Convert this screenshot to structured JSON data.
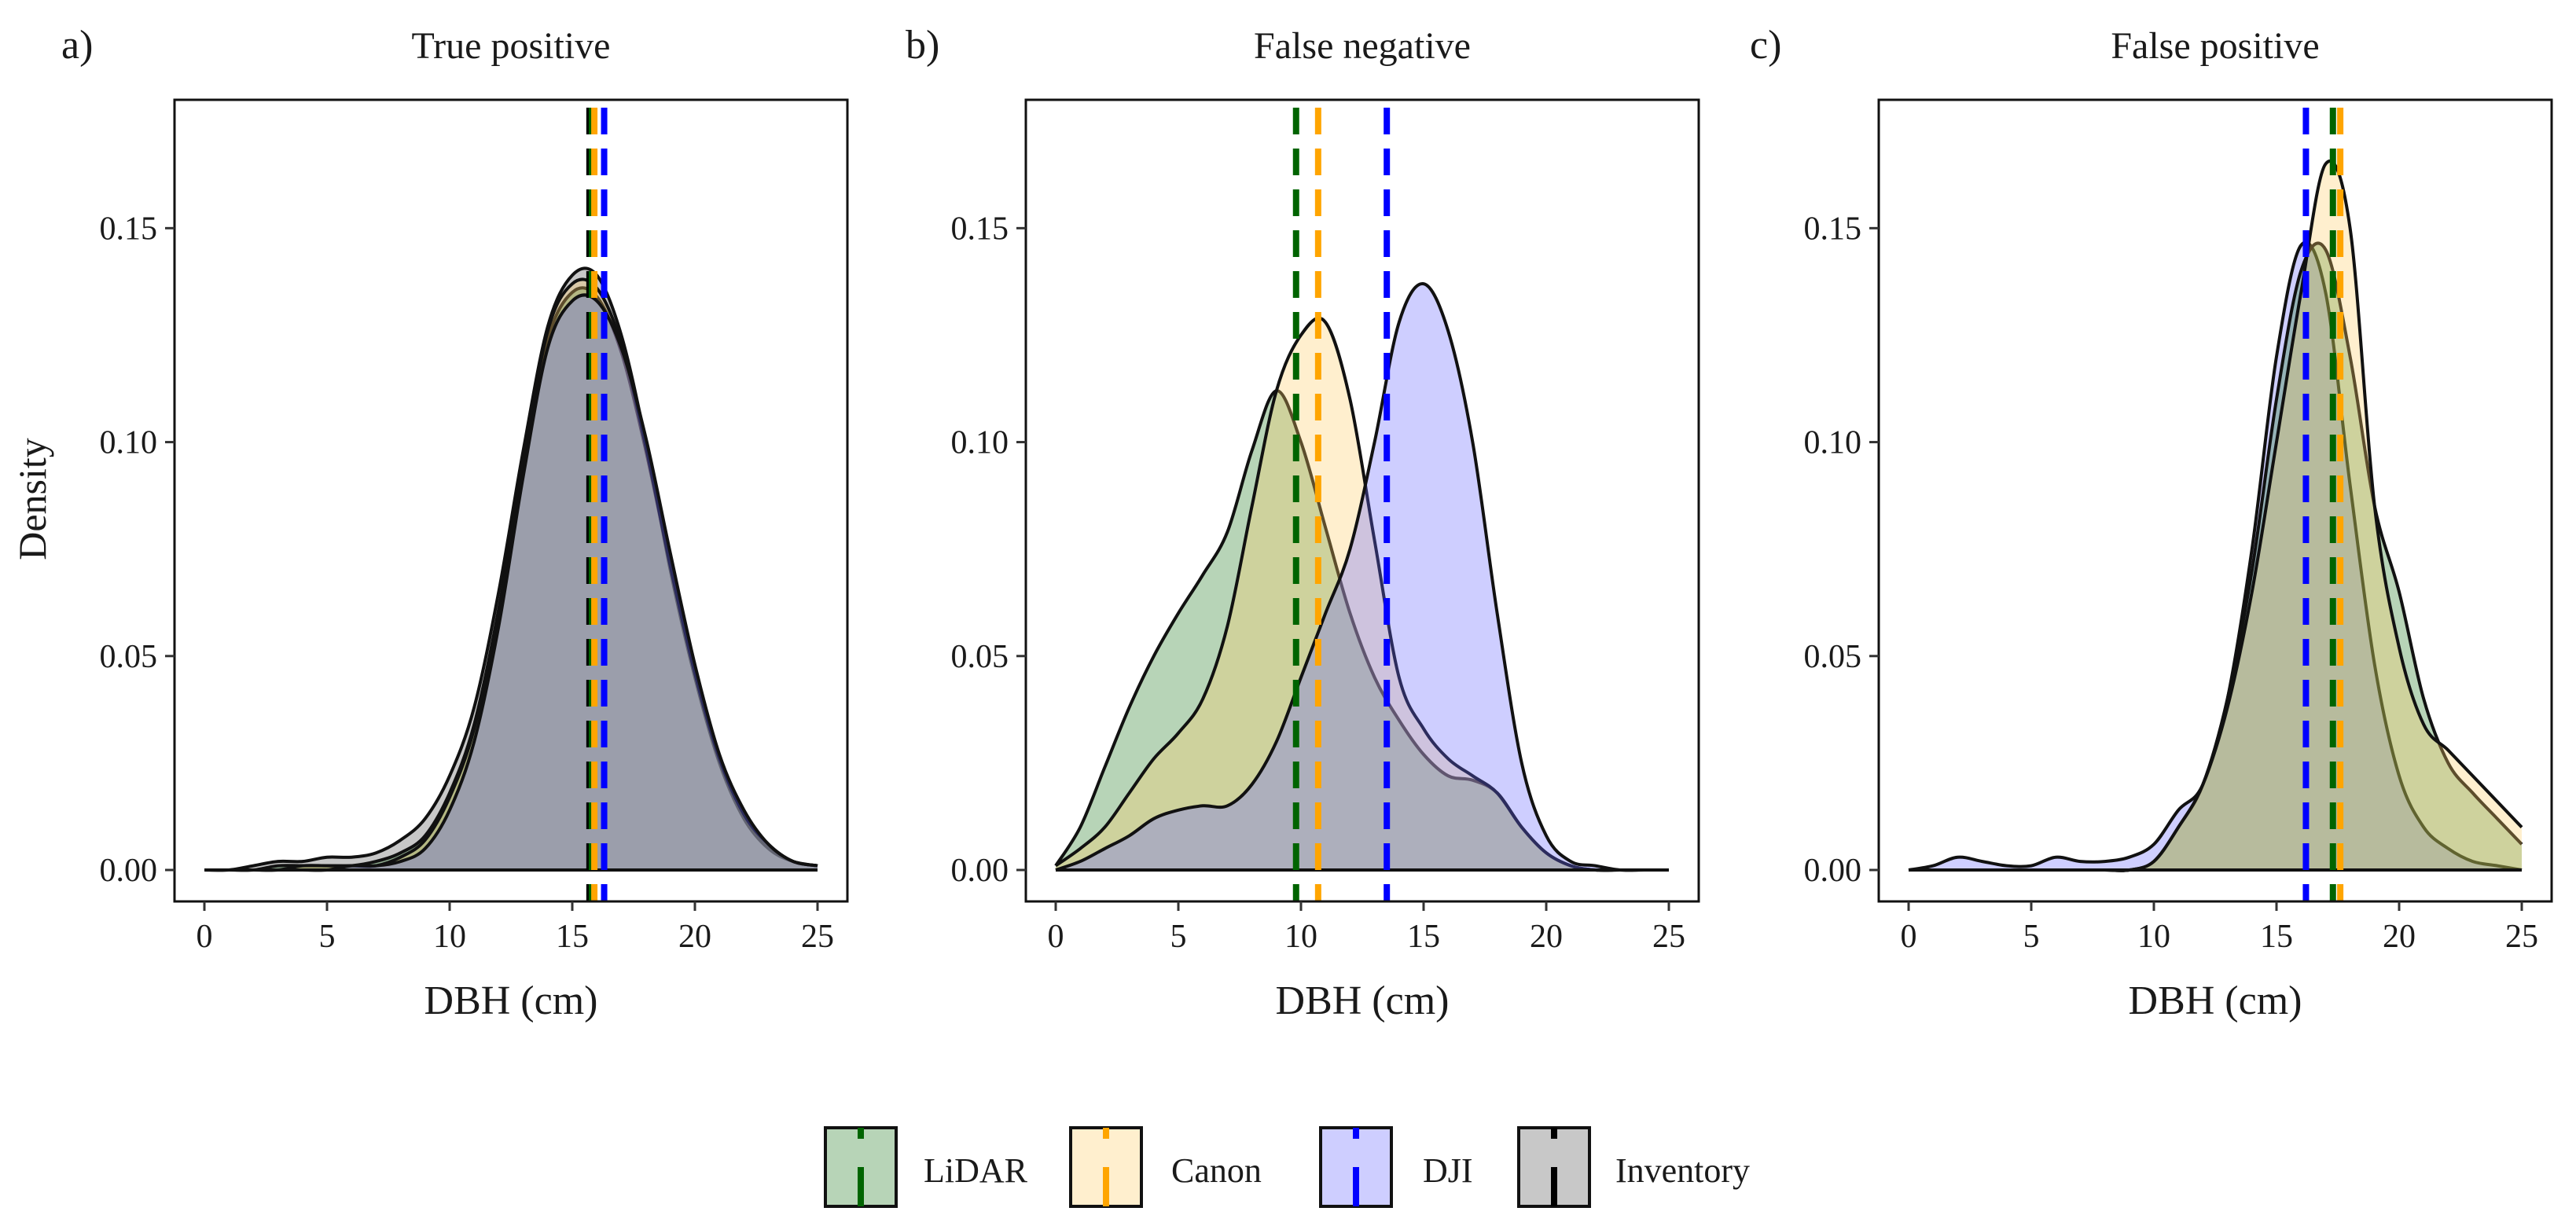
{
  "figure": {
    "y_axis_title": "Density",
    "colors": {
      "LiDAR": "#006400",
      "Canon": "#FFA500",
      "DJI": "#0000FF",
      "Inventory": "#000000",
      "fill_LiDAR": "#1f7a1f",
      "fill_Canon": "#ffcc66",
      "fill_DJI": "#6666ff",
      "fill_Inventory": "#555555"
    }
  },
  "legend": {
    "placement": "bottom-center",
    "items": [
      {
        "key": "LiDAR",
        "label": "LiDAR"
      },
      {
        "key": "Canon",
        "label": "Canon"
      },
      {
        "key": "DJI",
        "label": "DJI"
      },
      {
        "key": "Inventory",
        "label": "Inventory"
      }
    ]
  },
  "chart_data": [
    {
      "type": "area",
      "panel_label": "a)",
      "title": "True positive",
      "xlabel": "DBH (cm)",
      "ylabel": "Density",
      "xlim": [
        0,
        25
      ],
      "ylim": [
        0,
        0.18
      ],
      "x_ticks": [
        "0",
        "5",
        "10",
        "15",
        "20",
        "25"
      ],
      "y_ticks": [
        "0.00",
        "0.05",
        "0.10",
        "0.15"
      ],
      "x": [
        0,
        1,
        2,
        3,
        4,
        5,
        6,
        7,
        8,
        9,
        10,
        11,
        12,
        13,
        14,
        15,
        16,
        17,
        18,
        19,
        20,
        21,
        22,
        23,
        24,
        25
      ],
      "series": [
        {
          "name": "Inventory",
          "values": [
            0,
            0,
            0.001,
            0.002,
            0.002,
            0.003,
            0.003,
            0.004,
            0.007,
            0.012,
            0.022,
            0.038,
            0.065,
            0.098,
            0.127,
            0.139,
            0.139,
            0.125,
            0.1,
            0.07,
            0.045,
            0.025,
            0.012,
            0.005,
            0.002,
            0.001
          ]
        },
        {
          "name": "LiDAR",
          "values": [
            0,
            0,
            0,
            0.001,
            0.001,
            0.001,
            0.001,
            0.002,
            0.004,
            0.008,
            0.018,
            0.034,
            0.061,
            0.095,
            0.124,
            0.135,
            0.134,
            0.121,
            0.098,
            0.071,
            0.046,
            0.026,
            0.013,
            0.006,
            0.002,
            0.001
          ]
        },
        {
          "name": "Canon",
          "values": [
            0,
            0,
            0,
            0,
            0.001,
            0.001,
            0.001,
            0.001,
            0.003,
            0.007,
            0.017,
            0.033,
            0.06,
            0.095,
            0.126,
            0.137,
            0.136,
            0.123,
            0.099,
            0.071,
            0.046,
            0.026,
            0.013,
            0.006,
            0.002,
            0.001
          ]
        },
        {
          "name": "DJI",
          "values": [
            0,
            0,
            0,
            0,
            0,
            0,
            0.001,
            0.001,
            0.002,
            0.005,
            0.014,
            0.03,
            0.057,
            0.092,
            0.122,
            0.133,
            0.133,
            0.122,
            0.101,
            0.074,
            0.048,
            0.027,
            0.014,
            0.006,
            0.002,
            0.001
          ]
        }
      ],
      "means": {
        "Inventory": 15.7,
        "LiDAR": 15.8,
        "Canon": 15.9,
        "DJI": 16.3
      }
    },
    {
      "type": "area",
      "panel_label": "b)",
      "title": "False negative",
      "xlabel": "DBH (cm)",
      "ylabel": "",
      "xlim": [
        0,
        25
      ],
      "ylim": [
        0,
        0.18
      ],
      "x_ticks": [
        "0",
        "5",
        "10",
        "15",
        "20",
        "25"
      ],
      "y_ticks": [
        "0.00",
        "0.05",
        "0.10",
        "0.15"
      ],
      "x": [
        0,
        1,
        2,
        3,
        4,
        5,
        6,
        7,
        8,
        9,
        10,
        11,
        12,
        13,
        14,
        15,
        16,
        17,
        18,
        19,
        20,
        21,
        22,
        23,
        24,
        25
      ],
      "series": [
        {
          "name": "LiDAR",
          "values": [
            0.001,
            0.01,
            0.024,
            0.038,
            0.05,
            0.06,
            0.069,
            0.079,
            0.098,
            0.112,
            0.1,
            0.08,
            0.06,
            0.045,
            0.035,
            0.027,
            0.022,
            0.021,
            0.018,
            0.01,
            0.004,
            0.001,
            0,
            0,
            0,
            0
          ]
        },
        {
          "name": "Canon",
          "values": [
            0.001,
            0.005,
            0.01,
            0.018,
            0.026,
            0.032,
            0.04,
            0.057,
            0.085,
            0.112,
            0.125,
            0.128,
            0.11,
            0.077,
            0.045,
            0.033,
            0.026,
            0.022,
            0.018,
            0.01,
            0.004,
            0.001,
            0,
            0,
            0,
            0
          ]
        },
        {
          "name": "DJI",
          "values": [
            0,
            0.002,
            0.005,
            0.008,
            0.012,
            0.014,
            0.015,
            0.015,
            0.02,
            0.03,
            0.045,
            0.06,
            0.075,
            0.1,
            0.128,
            0.137,
            0.126,
            0.1,
            0.06,
            0.025,
            0.008,
            0.002,
            0.001,
            0,
            0,
            0
          ]
        }
      ],
      "means": {
        "LiDAR": 9.8,
        "Canon": 10.7,
        "DJI": 13.5
      }
    },
    {
      "type": "area",
      "panel_label": "c)",
      "title": "False positive",
      "xlabel": "DBH (cm)",
      "ylabel": "",
      "xlim": [
        0,
        25
      ],
      "ylim": [
        0,
        0.18
      ],
      "x_ticks": [
        "0",
        "5",
        "10",
        "15",
        "20",
        "25"
      ],
      "y_ticks": [
        "0.00",
        "0.05",
        "0.10",
        "0.15"
      ],
      "x": [
        0,
        1,
        2,
        3,
        4,
        5,
        6,
        7,
        8,
        9,
        10,
        11,
        12,
        13,
        14,
        15,
        16,
        17,
        18,
        19,
        20,
        21,
        22,
        23,
        24,
        25
      ],
      "series": [
        {
          "name": "DJI",
          "values": [
            0,
            0.001,
            0.003,
            0.002,
            0.001,
            0.001,
            0.003,
            0.002,
            0.002,
            0.003,
            0.006,
            0.014,
            0.02,
            0.04,
            0.075,
            0.12,
            0.146,
            0.135,
            0.09,
            0.048,
            0.022,
            0.01,
            0.005,
            0.002,
            0.001,
            0
          ]
        },
        {
          "name": "LiDAR",
          "values": [
            0,
            0,
            0,
            0,
            0,
            0,
            0,
            0,
            0,
            0,
            0.002,
            0.01,
            0.02,
            0.04,
            0.07,
            0.11,
            0.14,
            0.145,
            0.12,
            0.085,
            0.065,
            0.04,
            0.025,
            0.018,
            0.012,
            0.006
          ]
        },
        {
          "name": "Canon",
          "values": [
            0,
            0,
            0,
            0,
            0,
            0,
            0,
            0,
            0,
            0,
            0.002,
            0.01,
            0.02,
            0.038,
            0.065,
            0.1,
            0.135,
            0.165,
            0.15,
            0.085,
            0.052,
            0.034,
            0.028,
            0.022,
            0.016,
            0.01
          ]
        }
      ],
      "means": {
        "DJI": 16.2,
        "LiDAR": 17.3,
        "Canon": 17.6
      }
    }
  ]
}
